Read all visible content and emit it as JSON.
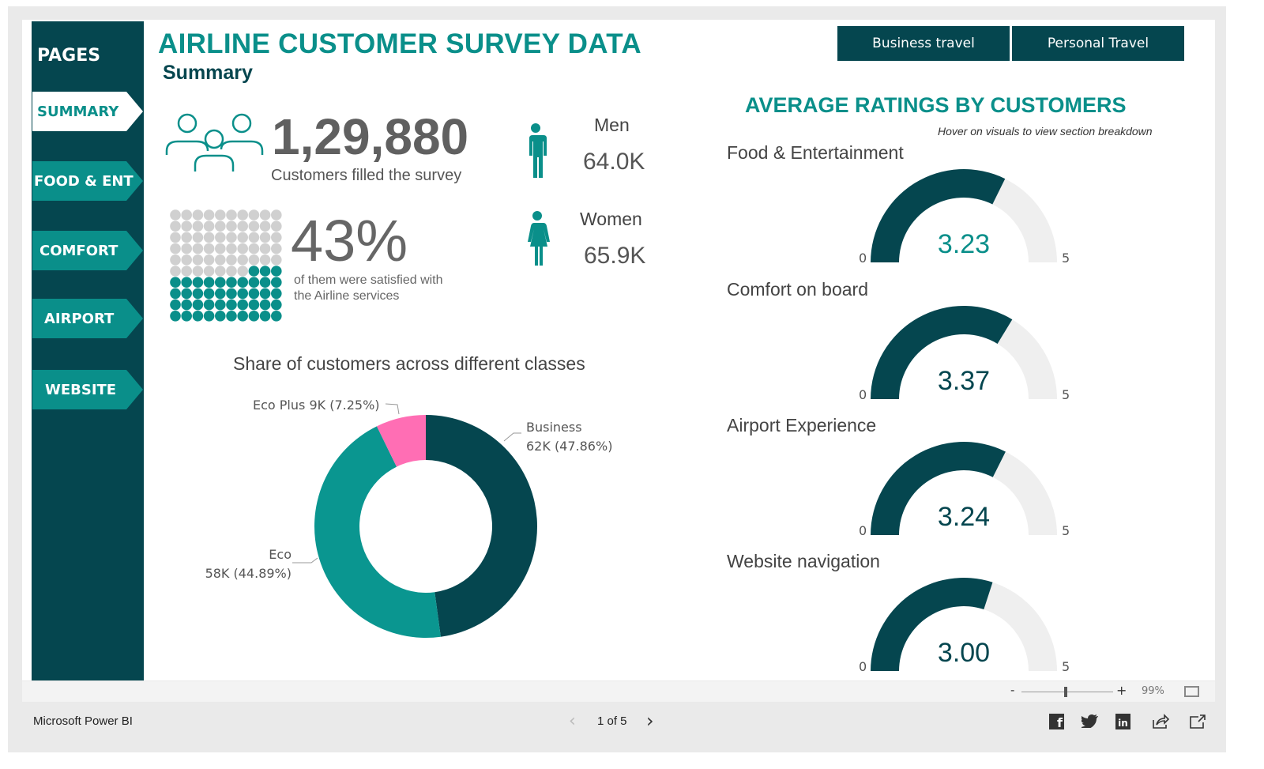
{
  "header": {
    "title": "AIRLINE CUSTOMER SURVEY DATA",
    "subtitle": "Summary",
    "buttons": [
      "Business travel",
      "Personal Travel"
    ]
  },
  "sidebar": {
    "title": "PAGES",
    "items": [
      {
        "label": "SUMMARY",
        "active": true
      },
      {
        "label": "FOOD & ENT"
      },
      {
        "label": "COMFORT"
      },
      {
        "label": "AIRPORT"
      },
      {
        "label": "WEBSITE"
      }
    ]
  },
  "kpi": {
    "customers": "1,29,880",
    "customers_label": "Customers filled the survey",
    "satisfied_pct": "43%",
    "satisfied_value": 43,
    "satisfied_label_1": "of them were satisfied with",
    "satisfied_label_2": "the Airline services",
    "men_label": "Men",
    "men_value": "64.0K",
    "women_label": "Women",
    "women_value": "65.9K"
  },
  "ratings": {
    "title": "AVERAGE RATINGS BY CUSTOMERS",
    "hint": "Hover on visuals to view section breakdown",
    "min": "0",
    "max": "5",
    "gauges": [
      {
        "label": "Food & Entertainment",
        "value": 3.23,
        "display": "3.23"
      },
      {
        "label": "Comfort on board",
        "value": 3.37,
        "display": "3.37"
      },
      {
        "label": "Airport Experience",
        "value": 3.24,
        "display": "3.24"
      },
      {
        "label": "Website navigation",
        "value": 3.0,
        "display": "3.00"
      }
    ]
  },
  "chart_data": {
    "type": "pie",
    "title": "Share of customers across different classes",
    "slices": [
      {
        "name": "Business",
        "value": 62,
        "pct": 47.86,
        "label_1": "Business",
        "label_2": "62K (47.86%)",
        "color": "#05464f"
      },
      {
        "name": "Eco",
        "value": 58,
        "pct": 44.89,
        "label_1": "Eco",
        "label_2": "58K (44.89%)",
        "color": "#0a9690"
      },
      {
        "name": "Eco Plus",
        "value": 9,
        "pct": 7.25,
        "label_1": "Eco Plus 9K (7.25%)",
        "color": "#ff6eb4"
      }
    ]
  },
  "toolbar": {
    "zoom": "99%",
    "minus": "-",
    "plus": "+"
  },
  "footer": {
    "brand": "Microsoft Power BI",
    "page": "1 of 5"
  },
  "colors": {
    "dark": "#05464f",
    "teal": "#0a8f8a",
    "pink": "#ff6eb4"
  }
}
